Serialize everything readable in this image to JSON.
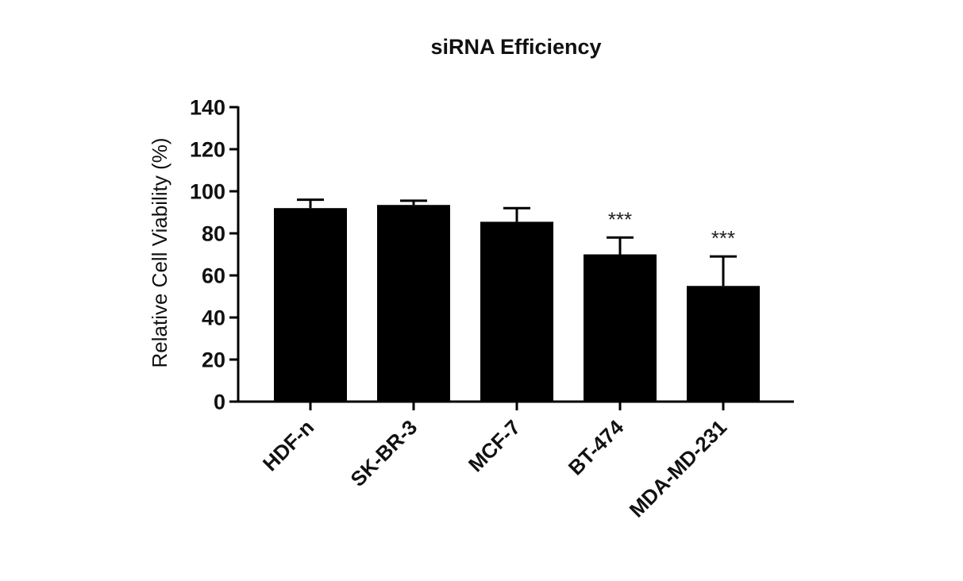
{
  "chart_data": {
    "type": "bar",
    "title": "siRNA Efficiency",
    "xlabel": "",
    "ylabel": "Relative Cell Viability (%)",
    "ylim": [
      0,
      140
    ],
    "yticks": [
      0,
      20,
      40,
      60,
      80,
      100,
      120,
      140
    ],
    "categories": [
      "HDF-n",
      "SK-BR-3",
      "MCF-7",
      "BT-474",
      "MDA-MD-231"
    ],
    "values": [
      92,
      93.5,
      85.5,
      70,
      55
    ],
    "errors": [
      4,
      2,
      6.5,
      8,
      14
    ],
    "annotations": [
      "",
      "",
      "",
      "***",
      "***"
    ],
    "bar_color": "#000000",
    "grid": false,
    "legend": "none"
  }
}
